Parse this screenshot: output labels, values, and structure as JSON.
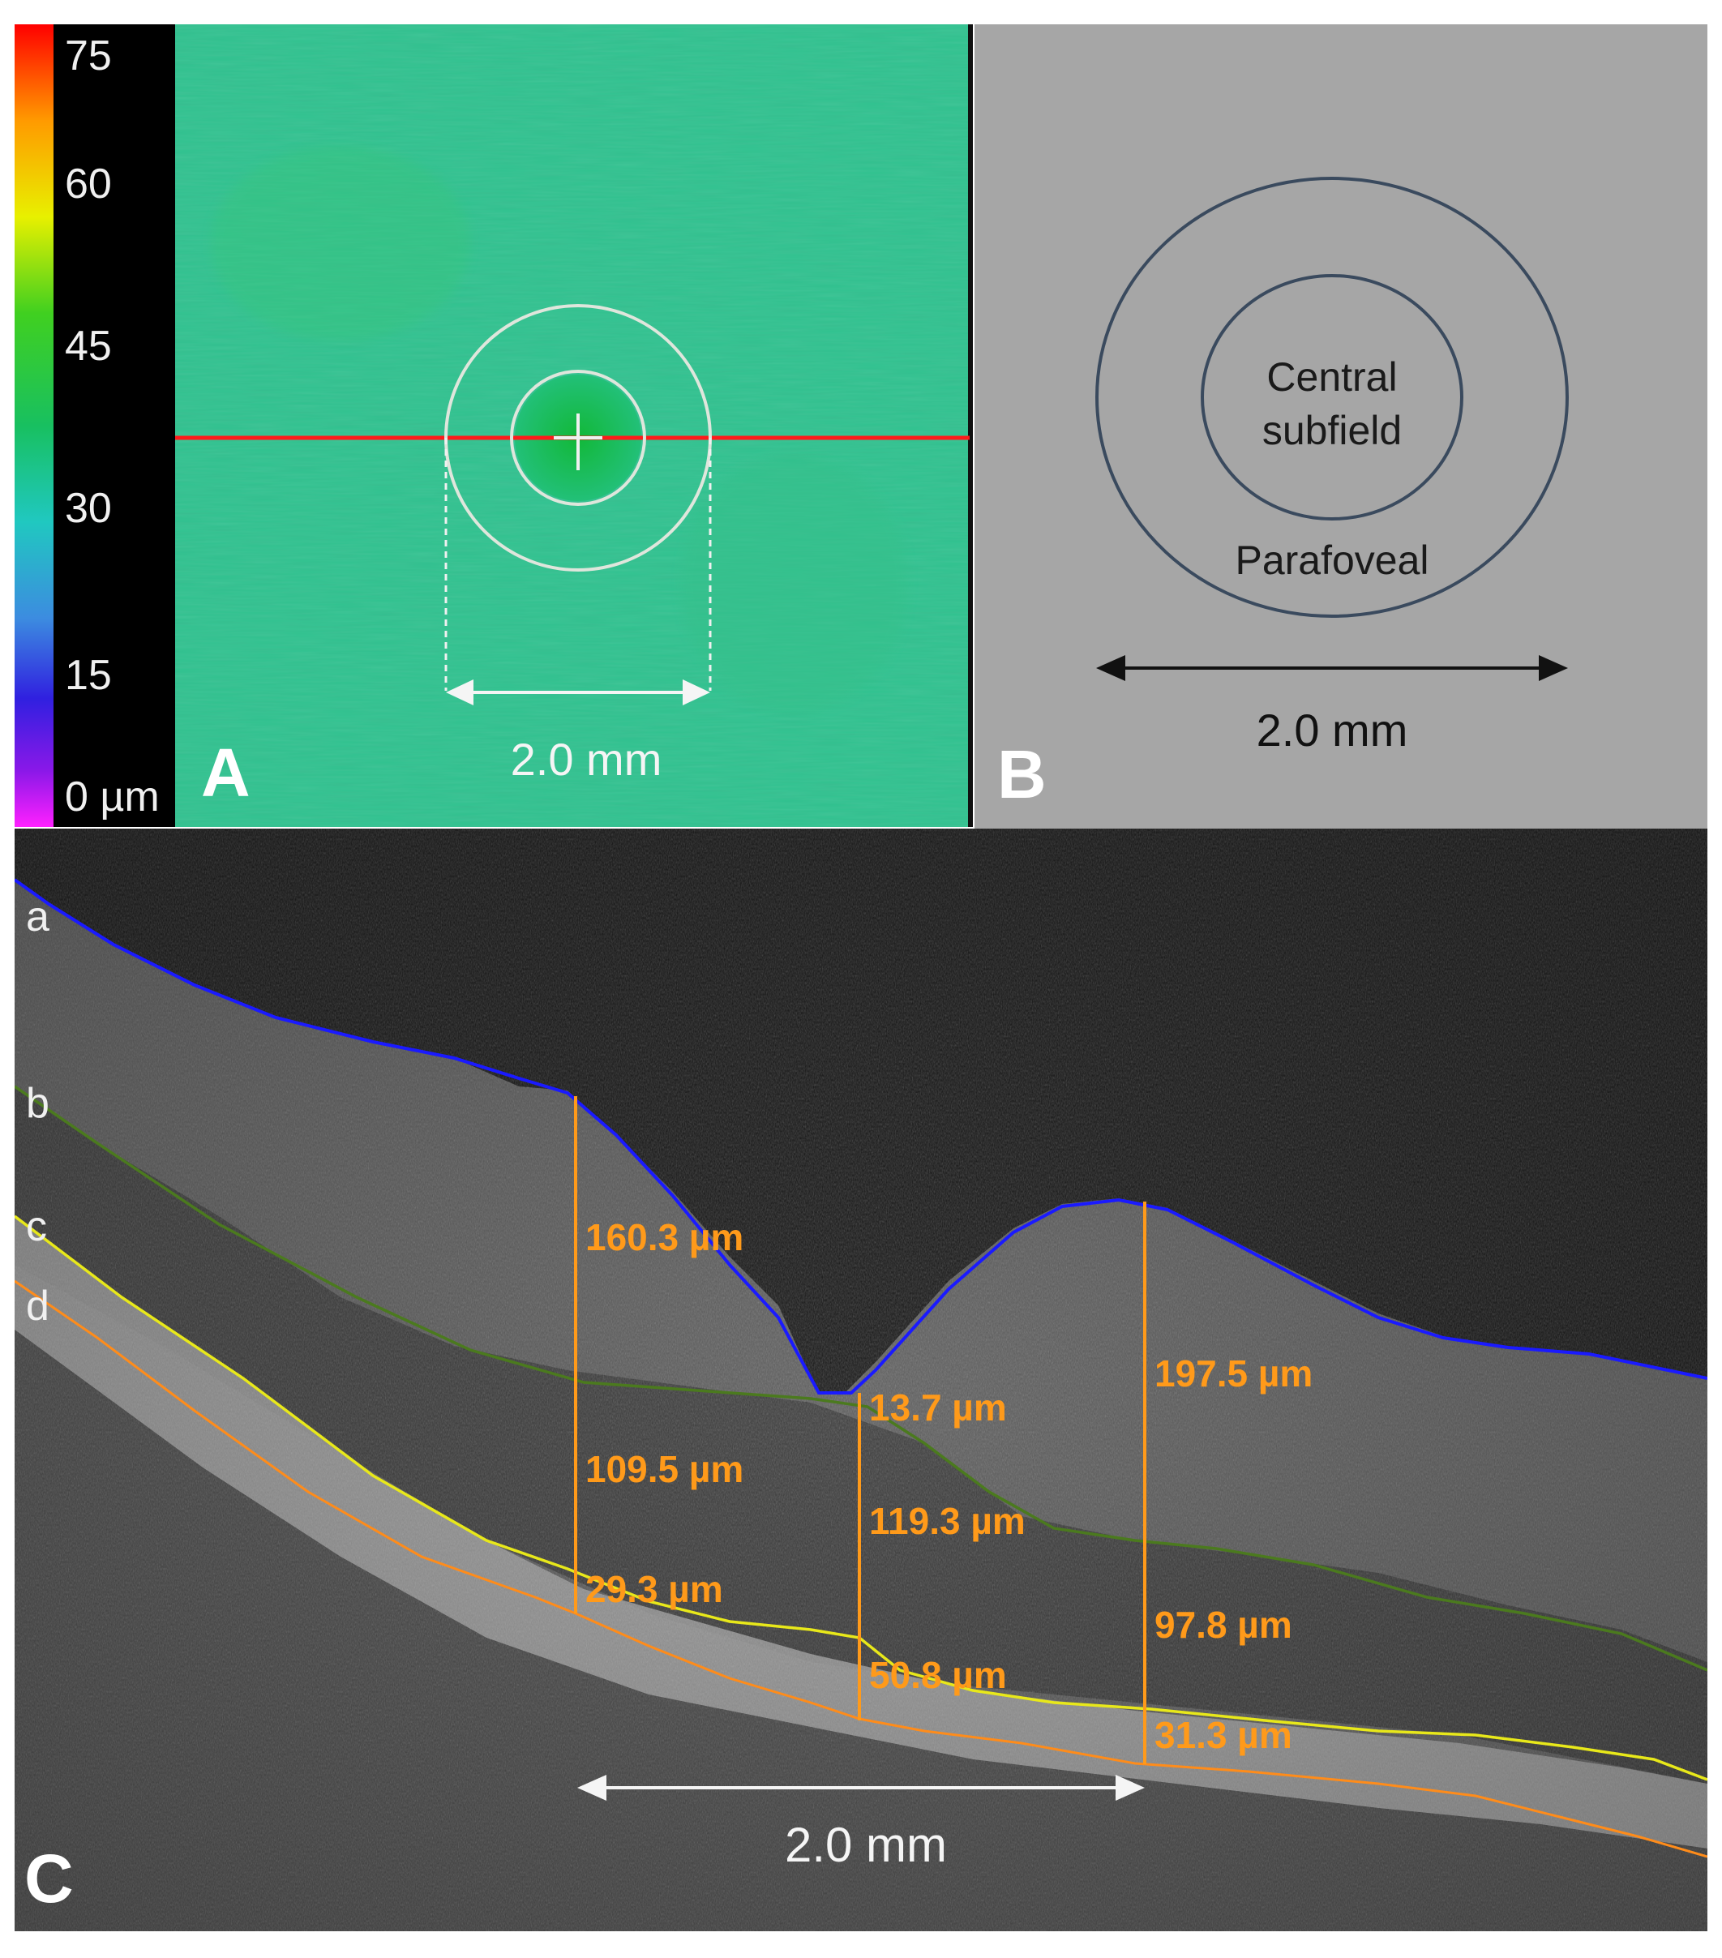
{
  "panel_a": {
    "letter": "A",
    "colorbar_ticks": [
      "75",
      "60",
      "45",
      "30",
      "15",
      "0 µm"
    ],
    "scale_label": "2.0 mm"
  },
  "panel_b": {
    "letter": "B",
    "central_label_line1": "Central",
    "central_label_line2": "subfield",
    "parafoveal_label": "Parafoveal",
    "scale_label": "2.0 mm"
  },
  "panel_c": {
    "letter": "C",
    "layer_labels": [
      "a",
      "b",
      "c",
      "d"
    ],
    "measurements": [
      "160.3 µm",
      "109.5 µm",
      "29.3 µm",
      "13.7 µm",
      "119.3 µm",
      "50.8 µm",
      "197.5 µm",
      "97.8 µm",
      "31.3 µm"
    ],
    "scale_label": "2.0 mm"
  },
  "colors": {
    "layer_a": "#1a1aff",
    "layer_b": "#4b7a1e",
    "layer_c": "#e8e81a",
    "layer_d": "#ff8c1a",
    "measure": "#ff9a1a",
    "thickness_map": "#2fc28f",
    "panel_b_bg": "#a6a6a6",
    "ring": "#3a4a5e"
  }
}
